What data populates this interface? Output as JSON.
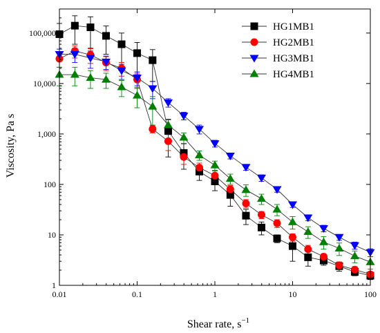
{
  "chart_data": {
    "type": "scatter",
    "xscale": "log",
    "yscale": "log",
    "xlim": [
      0.01,
      100
    ],
    "ylim": [
      1,
      300000
    ],
    "xlabel": "Shear rate, s",
    "xlabel_superscript": "−1",
    "ylabel": "Viscosity, Pa s",
    "grid": false,
    "legend_position": "top-right",
    "x_ticks": [
      {
        "value": 0.01,
        "label": "0.01"
      },
      {
        "value": 0.1,
        "label": "0.1"
      },
      {
        "value": 1,
        "label": "1"
      },
      {
        "value": 10,
        "label": "10"
      },
      {
        "value": 100,
        "label": "100"
      }
    ],
    "y_ticks": [
      {
        "value": 1,
        "label": "1"
      },
      {
        "value": 10,
        "label": "10"
      },
      {
        "value": 100,
        "label": "100"
      },
      {
        "value": 1000,
        "label": "1,000"
      },
      {
        "value": 10000,
        "label": "10,000"
      },
      {
        "value": 100000,
        "label": "100,000"
      }
    ],
    "x": [
      0.01,
      0.0158,
      0.0251,
      0.0398,
      0.0631,
      0.1,
      0.158,
      0.251,
      0.398,
      0.631,
      1,
      1.58,
      2.51,
      3.98,
      6.31,
      10,
      15.8,
      25.1,
      39.8,
      63.1,
      100
    ],
    "series": [
      {
        "name": "HG1MB1",
        "marker": "square",
        "color": "#000000",
        "values": [
          95000,
          140000,
          130000,
          88000,
          60000,
          40000,
          29000,
          1150,
          420,
          180,
          115,
          62,
          24,
          14,
          8.5,
          6,
          3.6,
          3.1,
          2.4,
          1.85,
          1.55
        ],
        "errors": [
          60000,
          80000,
          80000,
          50000,
          40000,
          25000,
          18000,
          800,
          220,
          60,
          40,
          25,
          8,
          4,
          1.5,
          3,
          1.2,
          0.6,
          0.5,
          0.3,
          0.25
        ]
      },
      {
        "name": "HG2MB1",
        "marker": "circle",
        "color": "#ff0000",
        "values": [
          31000,
          44000,
          37000,
          26000,
          20000,
          12000,
          1250,
          720,
          350,
          215,
          150,
          80,
          42,
          25,
          17,
          9,
          5.2,
          3.7,
          2.5,
          2.05,
          1.65
        ],
        "errors": [
          10000,
          12000,
          12000,
          8000,
          6000,
          4000,
          200,
          250,
          100,
          50,
          35,
          15,
          8,
          4,
          3,
          1.5,
          1,
          0.5,
          0.4,
          0.3,
          0.2
        ]
      },
      {
        "name": "HG3MB1",
        "marker": "triangle-down",
        "color": "#0000ff",
        "values": [
          38000,
          38000,
          32000,
          27000,
          18000,
          13000,
          8000,
          4200,
          2300,
          1250,
          650,
          370,
          220,
          135,
          80,
          40,
          22,
          13.5,
          9,
          6.2,
          4.5
        ],
        "errors": [
          10000,
          12000,
          12000,
          8000,
          6000,
          4000,
          3000,
          800,
          400,
          250,
          100,
          50,
          30,
          20,
          10,
          5,
          3,
          2,
          1.2,
          1,
          0.8
        ]
      },
      {
        "name": "HG4MB1",
        "marker": "triangle-up",
        "color": "#008000",
        "values": [
          15000,
          15000,
          13000,
          12000,
          8500,
          5800,
          3500,
          1500,
          850,
          380,
          240,
          130,
          78,
          52,
          32,
          18,
          11.5,
          7.2,
          5.4,
          3.8,
          2.9
        ],
        "errors": [
          6000,
          6000,
          5000,
          4000,
          3000,
          2500,
          2000,
          400,
          200,
          80,
          50,
          30,
          20,
          12,
          8,
          5,
          3,
          2,
          1.5,
          1,
          0.8
        ]
      }
    ]
  }
}
